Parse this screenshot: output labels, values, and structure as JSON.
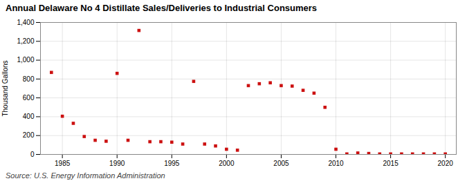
{
  "chart_data": {
    "type": "scatter",
    "title": "Annual Delaware No 4 Distillate Sales/Deliveries to Industrial Consumers",
    "ylabel": "Thousand Gallons",
    "source": "Source: U.S. Energy Information Administration",
    "x": [
      1984,
      1985,
      1986,
      1987,
      1988,
      1989,
      1990,
      1991,
      1992,
      1993,
      1994,
      1995,
      1996,
      1997,
      1998,
      1999,
      2000,
      2001,
      2002,
      2003,
      2004,
      2005,
      2006,
      2007,
      2008,
      2009,
      2010,
      2011,
      2012,
      2013,
      2014,
      2015,
      2016,
      2017,
      2018,
      2019,
      2020
    ],
    "values": [
      870,
      405,
      330,
      190,
      150,
      140,
      860,
      150,
      1315,
      135,
      135,
      130,
      110,
      775,
      110,
      90,
      55,
      45,
      730,
      750,
      760,
      730,
      725,
      680,
      650,
      500,
      55,
      5,
      15,
      10,
      5,
      5,
      5,
      5,
      5,
      5,
      5
    ],
    "color": "#cc1111",
    "marker": "square",
    "xlim": [
      1983,
      2021
    ],
    "ylim": [
      0,
      1400
    ],
    "xticks": [
      1985,
      1990,
      1995,
      2000,
      2005,
      2010,
      2015,
      2020
    ],
    "yticks": [
      0,
      200,
      400,
      600,
      800,
      {
        "value": 1000,
        "label": "1,000"
      },
      {
        "value": 1200,
        "label": "1,200"
      },
      {
        "value": 1400,
        "label": "1,400"
      }
    ],
    "grid": true
  }
}
